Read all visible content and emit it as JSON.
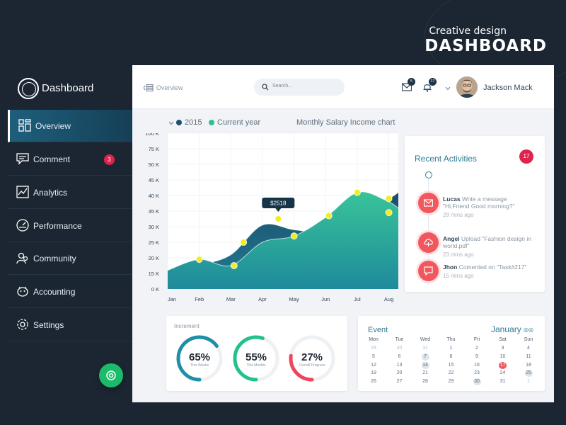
{
  "hero": {
    "subtitle": "Creative design",
    "title": "DASHBOARD"
  },
  "app": {
    "title": "Dashboard"
  },
  "sidebar": {
    "items": [
      {
        "label": "Overview",
        "icon": "grid-icon",
        "active": true
      },
      {
        "label": "Comment",
        "icon": "comment-icon",
        "badge": "3"
      },
      {
        "label": "Analytics",
        "icon": "analytics-icon"
      },
      {
        "label": "Performance",
        "icon": "gauge-icon"
      },
      {
        "label": "Community",
        "icon": "community-icon"
      },
      {
        "label": "Accounting",
        "icon": "piggy-bank-icon"
      },
      {
        "label": "Settings",
        "icon": "gear-icon"
      }
    ]
  },
  "topbar": {
    "breadcrumb": "Overview",
    "search_placeholder": "Search...",
    "messages_badge": "5",
    "notifications_badge": "17",
    "user_name": "Jackson Mack"
  },
  "chart_header": {
    "legend_prev": "2015",
    "legend_current": "Current year",
    "title": "Monthly Salary Income chart"
  },
  "chart_data": {
    "type": "area",
    "title": "Monthly Salary Income chart",
    "categories": [
      "Jan",
      "Feb",
      "Mar",
      "Apr",
      "May",
      "Jun",
      "Jul",
      "Aug"
    ],
    "ytick_labels": [
      "0 K",
      "15 K",
      "20 K",
      "25 K",
      "30 K",
      "35 K",
      "40 K",
      "45 K",
      "50 K",
      "75 K",
      "100 K"
    ],
    "series": [
      {
        "name": "2015",
        "color": "#1f4f6b",
        "points": [
          [
            0.0,
            0.8
          ],
          [
            1.0,
            1.5
          ],
          [
            2.0,
            2.2
          ],
          [
            3.0,
            4.1
          ],
          [
            4.0,
            3.8
          ],
          [
            5.0,
            3.7
          ],
          [
            6.0,
            4.8
          ],
          [
            7.0,
            5.8
          ],
          [
            7.3,
            6.2
          ]
        ]
      },
      {
        "name": "Current year",
        "color": "#2ebf9a",
        "points": [
          [
            0.0,
            1.2
          ],
          [
            1.0,
            1.9
          ],
          [
            2.0,
            1.5
          ],
          [
            3.0,
            3.0
          ],
          [
            4.0,
            3.4
          ],
          [
            5.0,
            4.6
          ],
          [
            6.0,
            6.2
          ],
          [
            6.9,
            5.7
          ],
          [
            7.3,
            5.2
          ]
        ]
      }
    ],
    "yellow_markers": [
      {
        "series": "2015",
        "x": 1.0,
        "y": 1.9
      },
      {
        "series": "2015",
        "x": 2.4,
        "y": 3.0
      },
      {
        "series": "2015",
        "x": 3.5,
        "y": 4.5
      },
      {
        "series": "2015",
        "x": 7.0,
        "y": 5.8
      },
      {
        "series": "Current year",
        "x": 2.1,
        "y": 1.5
      },
      {
        "series": "Current year",
        "x": 4.0,
        "y": 3.4
      },
      {
        "series": "Current year",
        "x": 5.1,
        "y": 4.7
      },
      {
        "series": "Current year",
        "x": 6.0,
        "y": 6.2
      },
      {
        "series": "Current year",
        "x": 7.0,
        "y": 4.9
      }
    ],
    "tooltip": {
      "label": "$2518",
      "x": 3.5,
      "y": 4.5
    },
    "grid": true
  },
  "recent": {
    "title": "Recent Activities",
    "badge": "17",
    "items": [
      {
        "name": "Lucas",
        "text": "Write a message \"Hi,Friend Good morning?\"",
        "time": "28 mins ago",
        "icon": "envelope-icon"
      },
      {
        "name": "Angel",
        "text": "Upload \"Fashion design in world.pdf\"",
        "time": "23 mins ago",
        "icon": "cloud-upload-icon"
      },
      {
        "name": "Jhon",
        "text": "Comented on \"Task#217\"",
        "time": "15 mins ago",
        "icon": "comment-icon"
      }
    ]
  },
  "increment": {
    "title": "Increment",
    "gauges": [
      {
        "value": "65%",
        "caption": "This Weeks",
        "fraction": 0.65,
        "color": "#1d8fa8"
      },
      {
        "value": "55%",
        "caption": "This Months",
        "fraction": 0.55,
        "color": "#24c08e"
      },
      {
        "value": "27%",
        "caption": "Overall Progress",
        "fraction": 0.27,
        "color": "#f0445c"
      }
    ]
  },
  "event": {
    "title": "Event",
    "month": "January",
    "nav": "◎◎",
    "weekdays": [
      "Mon",
      "Tue",
      "Wed",
      "Thu",
      "Fri",
      "Sat",
      "Sun"
    ],
    "weeks": [
      [
        "29",
        "30",
        "31",
        "1",
        "2",
        "3",
        "4"
      ],
      [
        "5",
        "6",
        "7",
        "8",
        "9",
        "10",
        "11"
      ],
      [
        "12",
        "13",
        "14",
        "15",
        "16",
        "17",
        "18"
      ],
      [
        "19",
        "20",
        "21",
        "22",
        "23",
        "24",
        "25"
      ],
      [
        "26",
        "27",
        "28",
        "29",
        "30",
        "31",
        "1"
      ]
    ],
    "dim_days": [
      "0-0",
      "0-1",
      "0-2",
      "4-6"
    ],
    "marked_days": [
      "1-2",
      "2-2",
      "3-6",
      "4-4"
    ],
    "today": "2-5"
  }
}
